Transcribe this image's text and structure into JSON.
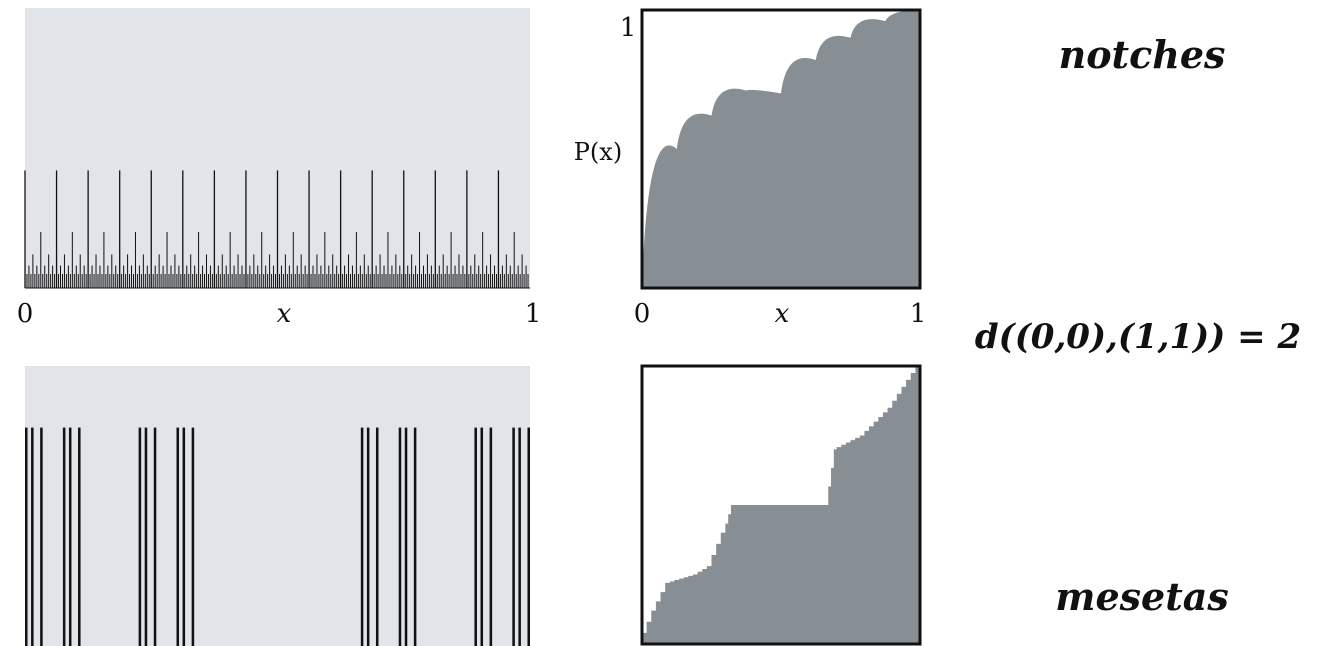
{
  "labels": {
    "notches": "notches",
    "mesetas": "mesetas",
    "distance": "d((0,0),(1,1)) = 2"
  },
  "colors": {
    "panel_background": "#e1e4e8",
    "bars": "#111111",
    "area_fill": "#878e94",
    "frame": "#111111"
  },
  "chart_data": [
    {
      "type": "bar",
      "panel": "top-left",
      "description": "dyadic notch measure (spikes at binary rationals)",
      "x_generator": "dyadic",
      "levels": 8,
      "spike_heights_by_level": [
        0.42,
        0.42,
        0.42,
        0.42,
        0.42,
        0.2,
        0.12,
        0.08,
        0.05
      ],
      "xlim": [
        0,
        1
      ],
      "ylim": [
        0,
        1
      ],
      "xticks": [
        0,
        1
      ],
      "xtick_labels": [
        "0",
        "1"
      ],
      "xlabel": "x",
      "ylabel": "",
      "grid": false
    },
    {
      "type": "area",
      "panel": "top-right",
      "description": "distribution function with notches (concave, scalloped)",
      "x": [
        0,
        0.125,
        0.25,
        0.375,
        0.5,
        0.625,
        0.75,
        0.875,
        1
      ],
      "y": [
        0,
        0.5,
        0.62,
        0.71,
        0.7,
        0.82,
        0.9,
        0.96,
        1
      ],
      "xlim": [
        0,
        1
      ],
      "ylim": [
        0,
        1
      ],
      "xticks": [
        0,
        1
      ],
      "xtick_labels": [
        "0",
        "1"
      ],
      "yticks": [
        1
      ],
      "ytick_labels": [
        "1"
      ],
      "xlabel": "x",
      "ylabel": "P(x)",
      "grid": false
    },
    {
      "type": "bar",
      "panel": "bottom-left",
      "description": "Cantor-set supported measure (full-height bars)",
      "intervals": [
        [
          0.0,
          0.005
        ],
        [
          0.012,
          0.017
        ],
        [
          0.03,
          0.035
        ],
        [
          0.075,
          0.08
        ],
        [
          0.087,
          0.092
        ],
        [
          0.105,
          0.11
        ],
        [
          0.225,
          0.23
        ],
        [
          0.237,
          0.242
        ],
        [
          0.255,
          0.26
        ],
        [
          0.3,
          0.305
        ],
        [
          0.312,
          0.317
        ],
        [
          0.33,
          0.335
        ],
        [
          0.665,
          0.67
        ],
        [
          0.677,
          0.682
        ],
        [
          0.695,
          0.7
        ],
        [
          0.74,
          0.745
        ],
        [
          0.752,
          0.757
        ],
        [
          0.77,
          0.775
        ],
        [
          0.89,
          0.895
        ],
        [
          0.902,
          0.907
        ],
        [
          0.92,
          0.925
        ],
        [
          0.965,
          0.97
        ],
        [
          0.977,
          0.982
        ],
        [
          0.995,
          1.0
        ]
      ],
      "bar_height": 0.78,
      "xlim": [
        0,
        1
      ],
      "ylim": [
        0,
        1
      ],
      "grid": false
    },
    {
      "type": "area",
      "panel": "bottom-right",
      "description": "Devil's staircase distribution with plateaus (mesetas)",
      "x": [
        0,
        0.05,
        0.1,
        0.2,
        0.25,
        0.3,
        0.33,
        0.67,
        0.7,
        0.8,
        0.9,
        1
      ],
      "y": [
        0,
        0.12,
        0.22,
        0.25,
        0.28,
        0.4,
        0.5,
        0.5,
        0.7,
        0.75,
        0.85,
        1
      ],
      "xlim": [
        0,
        1
      ],
      "ylim": [
        0,
        1
      ],
      "grid": false
    }
  ]
}
